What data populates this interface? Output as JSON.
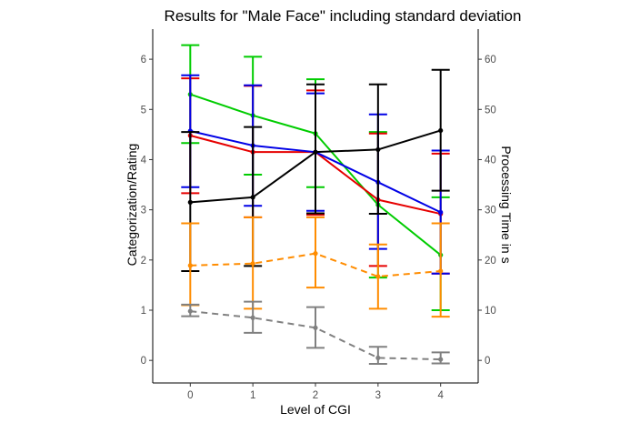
{
  "chart_data": {
    "type": "line",
    "title": "Results for \"Male Face\" including standard deviation",
    "xlabel": "Level of CGI",
    "ylabel": "Categorization/Rating",
    "y2label": "Processing Time in s",
    "x": [
      0,
      1,
      2,
      3,
      4
    ],
    "xlim": [
      -0.6,
      4.6
    ],
    "ylim": [
      -0.45,
      6.6
    ],
    "y2lim": [
      -4.5,
      66
    ],
    "yticks": [
      0,
      1,
      2,
      3,
      4,
      5,
      6
    ],
    "y2ticks": [
      0,
      10,
      20,
      30,
      40,
      50,
      60
    ],
    "grid": false,
    "legend": "none",
    "series": [
      {
        "axis": "left",
        "color": "#00cc00",
        "dashed": false,
        "values": [
          5.3,
          4.88,
          4.52,
          3.1,
          2.1
        ],
        "sd_low": [
          4.33,
          3.7,
          3.45,
          1.65,
          1.0
        ],
        "sd_high": [
          6.28,
          6.05,
          5.6,
          4.55,
          3.25
        ]
      },
      {
        "axis": "left",
        "color": "#e60000",
        "dashed": false,
        "values": [
          4.48,
          4.15,
          4.15,
          3.2,
          2.92
        ],
        "sd_low": [
          3.33,
          2.85,
          2.9,
          1.88,
          1.73
        ],
        "sd_high": [
          5.62,
          5.47,
          5.38,
          4.52,
          4.12
        ]
      },
      {
        "axis": "left",
        "color": "#0000e6",
        "dashed": false,
        "values": [
          4.57,
          4.28,
          4.15,
          3.55,
          2.95
        ],
        "sd_low": [
          3.45,
          3.08,
          2.98,
          2.22,
          1.73
        ],
        "sd_high": [
          5.68,
          5.48,
          5.32,
          4.9,
          4.18
        ]
      },
      {
        "axis": "right",
        "color": "#000000",
        "dashed": false,
        "values": [
          31.5,
          32.5,
          41.5,
          42,
          45.8
        ],
        "sd_low": [
          17.8,
          18.8,
          29.3,
          29.2,
          33.8
        ],
        "sd_high": [
          45.5,
          46.5,
          55,
          55,
          57.9
        ]
      },
      {
        "axis": "right",
        "color": "#ff8c00",
        "dashed": true,
        "values": [
          18.9,
          19.3,
          21.3,
          16.7,
          17.8
        ],
        "sd_low": [
          11,
          10.3,
          14.5,
          10.3,
          8.7
        ],
        "sd_high": [
          27.3,
          28.5,
          28.5,
          23.1,
          27.3
        ]
      },
      {
        "axis": "right",
        "color": "#808080",
        "dashed": true,
        "values": [
          9.8,
          8.5,
          6.5,
          0.5,
          0.2
        ],
        "sd_low": [
          8.8,
          5.5,
          2.5,
          -0.7,
          -0.6
        ],
        "sd_high": [
          11.1,
          11.7,
          10.6,
          2.7,
          1.6
        ]
      }
    ]
  }
}
